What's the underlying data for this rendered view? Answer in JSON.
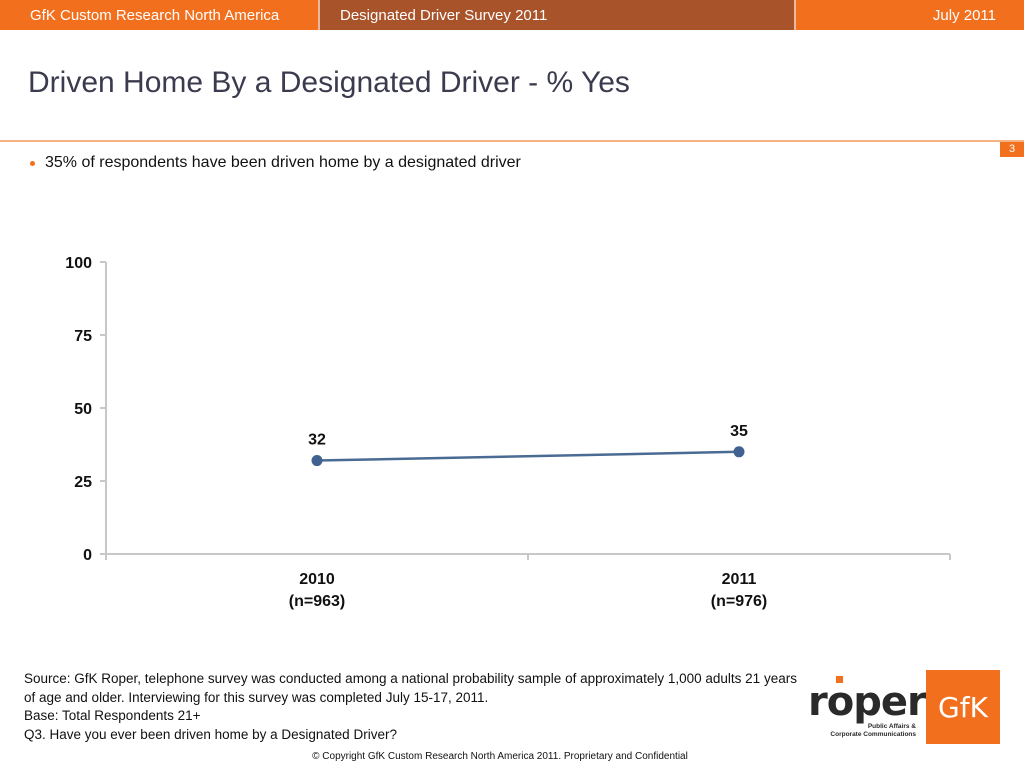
{
  "header": {
    "org": "GfK Custom Research North America",
    "survey": "Designated Driver Survey 2011",
    "date": "July 2011"
  },
  "slide": {
    "title": "Driven Home By a Designated Driver - % Yes",
    "page_number": "3",
    "bullet": "35% of respondents have been driven home by a designated driver"
  },
  "chart_data": {
    "type": "line",
    "categories": [
      [
        "2010",
        "(n=963)"
      ],
      [
        "2011",
        "(n=976)"
      ]
    ],
    "values": [
      32,
      35
    ],
    "data_labels": [
      "32",
      "35"
    ],
    "ylim": [
      0,
      100
    ],
    "yticks": [
      0,
      25,
      50,
      75,
      100
    ],
    "grid": false,
    "colors": {
      "line": "#4a6b94",
      "marker": "#3f6290",
      "axis": "#c8c8c8"
    }
  },
  "footer": {
    "source": "Source: GfK Roper, telephone survey was conducted among a national probability sample of approximately 1,000 adults 21 years of age and older.  Interviewing for this survey was completed July 15-17, 2011.",
    "base": "Base: Total Respondents 21+",
    "question": "Q3. Have you ever been driven home by a Designated Driver?",
    "copyright": "© Copyright GfK Custom Research North America 2011.  Proprietary and Confidential"
  },
  "logos": {
    "roper_word": "roper",
    "roper_sub_1": "Public Affairs &",
    "roper_sub_2": "Corporate Communications",
    "gfk": "GfK"
  },
  "colors": {
    "brand_orange": "#f26f1e",
    "brand_rust": "#a9532a"
  }
}
